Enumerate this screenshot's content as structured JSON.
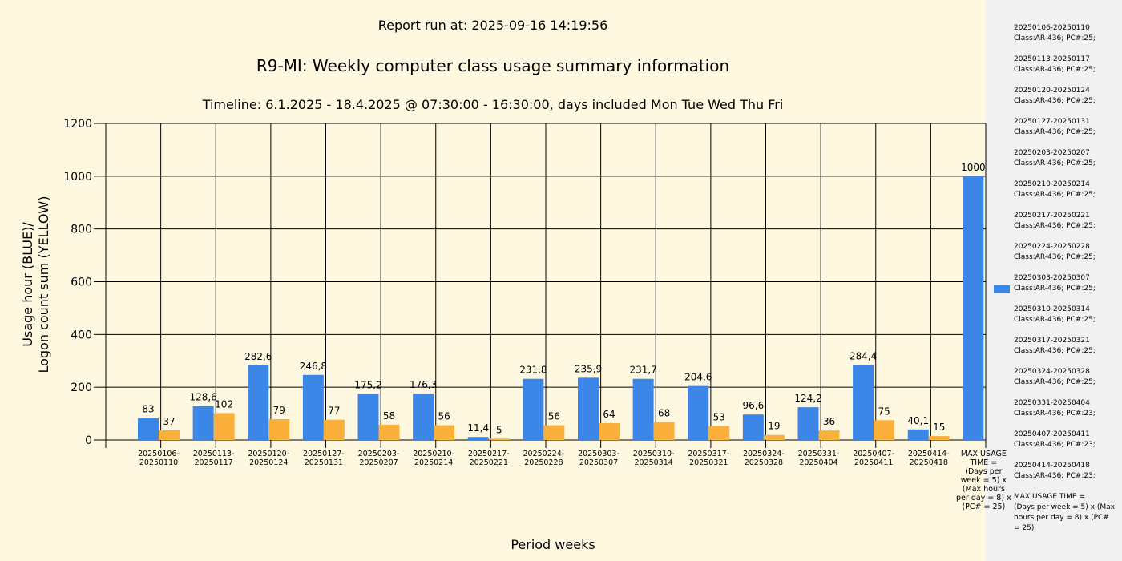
{
  "header": {
    "report_run": "Report run at: 2025-09-16 14:19:56",
    "title": "R9-MI: Weekly computer class usage summary information",
    "subtitle": "Timeline:  6.1.2025  - 18.4.2025  @  07:30:00 -  16:30:00, days included Mon Tue Wed Thu Fri"
  },
  "chart_data": {
    "type": "bar",
    "ylim": [
      0,
      1200
    ],
    "yticks": [
      0,
      200,
      400,
      600,
      800,
      1000,
      1200
    ],
    "xlabel": "Period weeks",
    "ylabel_line1": "Usage hour (BLUE)/",
    "ylabel_line2": "Logon count sum (YELLOW)",
    "grid": true,
    "legend_position": "right",
    "colors": {
      "usage": "#3c86e8",
      "logon": "#fbb03b",
      "grid": "#000000"
    },
    "categories": [
      [
        "20250106-",
        "20250110"
      ],
      [
        "20250113-",
        "20250117"
      ],
      [
        "20250120-",
        "20250124"
      ],
      [
        "20250127-",
        "20250131"
      ],
      [
        "20250203-",
        "20250207"
      ],
      [
        "20250210-",
        "20250214"
      ],
      [
        "20250217-",
        "20250221"
      ],
      [
        "20250224-",
        "20250228"
      ],
      [
        "20250303-",
        "20250307"
      ],
      [
        "20250310-",
        "20250314"
      ],
      [
        "20250317-",
        "20250321"
      ],
      [
        "20250324-",
        "20250328"
      ],
      [
        "20250331-",
        "20250404"
      ],
      [
        "20250407-",
        "20250411"
      ],
      [
        "20250414-",
        "20250418"
      ],
      [
        "MAX USAGE",
        "TIME =",
        "(Days per",
        "week = 5) x",
        "(Max hours",
        "per day = 8) x",
        "(PC# = 25)"
      ]
    ],
    "series": [
      {
        "values": [
          83,
          128.6,
          282.6,
          246.8,
          175.2,
          176.3,
          11.4,
          231.8,
          235.9,
          231.7,
          204.6,
          96.6,
          124.2,
          284.4,
          40.1,
          1000
        ],
        "labels": [
          "83",
          "128,6",
          "282,6",
          "246,8",
          "175,2",
          "176,3",
          "11,4",
          "231,8",
          "235,9",
          "231,7",
          "204,6",
          "96,6",
          "124,2",
          "284,4",
          "40,1",
          "1000"
        ]
      },
      {
        "values": [
          37,
          102,
          79,
          77,
          58,
          56,
          5,
          56,
          64,
          68,
          53,
          19,
          36,
          75,
          15,
          null
        ],
        "labels": [
          "37",
          "102",
          "79",
          "77",
          "58",
          "56",
          "5",
          "56",
          "64",
          "68",
          "53",
          "19",
          "36",
          "75",
          "15",
          null
        ]
      }
    ]
  },
  "legend": {
    "items": [
      [
        "20250106-20250110",
        "Class:AR-436; PC#:25;"
      ],
      [
        "20250113-20250117",
        "Class:AR-436; PC#:25;"
      ],
      [
        "20250120-20250124",
        "Class:AR-436; PC#:25;"
      ],
      [
        "20250127-20250131",
        "Class:AR-436; PC#:25;"
      ],
      [
        "20250203-20250207",
        "Class:AR-436; PC#:25;"
      ],
      [
        "20250210-20250214",
        "Class:AR-436; PC#:25;"
      ],
      [
        "20250217-20250221",
        "Class:AR-436; PC#:25;"
      ],
      [
        "20250224-20250228",
        "Class:AR-436; PC#:25;"
      ],
      [
        "20250303-20250307",
        "Class:AR-436; PC#:25;"
      ],
      [
        "20250310-20250314",
        "Class:AR-436; PC#:25;"
      ],
      [
        "20250317-20250321",
        "Class:AR-436; PC#:25;"
      ],
      [
        "20250324-20250328",
        "Class:AR-436; PC#:25;"
      ],
      [
        "20250331-20250404",
        "Class:AR-436; PC#:23;"
      ],
      [
        "20250407-20250411",
        "Class:AR-436; PC#:23;"
      ],
      [
        "20250414-20250418",
        "Class:AR-436; PC#:23;"
      ],
      [
        "MAX USAGE TIME =",
        " (Days per week = 5) x (Max",
        "hours per day = 8) x (PC#",
        "= 25)"
      ]
    ],
    "swatch_index": 8
  }
}
